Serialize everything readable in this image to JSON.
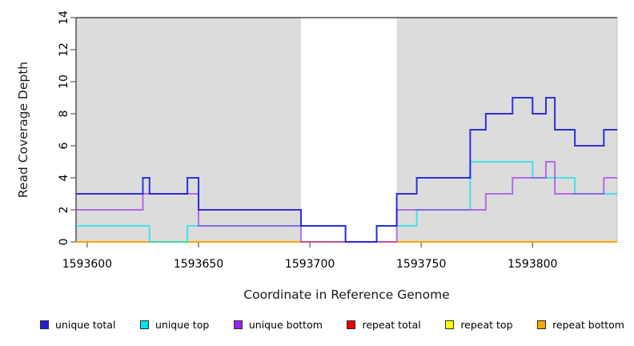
{
  "chart_data": {
    "type": "line",
    "subtype": "step-coverage",
    "title": "",
    "xlabel": "Coordinate in Reference Genome",
    "ylabel": "Read Coverage Depth",
    "xlim": [
      1593595,
      1593838
    ],
    "ylim": [
      0,
      14
    ],
    "x_ticks": [
      1593600,
      1593650,
      1593700,
      1593750,
      1593800
    ],
    "y_ticks": [
      0,
      2,
      4,
      6,
      8,
      10,
      12,
      14
    ],
    "grid": "off",
    "legend_position": "bottom",
    "shade_color": "#dcdcdc",
    "shaded_regions": [
      [
        1593595,
        1593696
      ],
      [
        1593739,
        1593838
      ]
    ],
    "unshaded_gap": [
      1593696,
      1593739
    ],
    "series": [
      {
        "name": "unique total",
        "color": "#1f1fdd",
        "steps": [
          [
            1593595,
            3
          ],
          [
            1593625,
            4
          ],
          [
            1593628,
            3
          ],
          [
            1593645,
            4
          ],
          [
            1593650,
            2
          ],
          [
            1593696,
            1
          ],
          [
            1593716,
            0
          ],
          [
            1593730,
            1
          ],
          [
            1593739,
            3
          ],
          [
            1593748,
            4
          ],
          [
            1593772,
            7
          ],
          [
            1593779,
            8
          ],
          [
            1593791,
            9
          ],
          [
            1593800,
            8
          ],
          [
            1593806,
            9
          ],
          [
            1593810,
            7
          ],
          [
            1593819,
            6
          ],
          [
            1593832,
            7
          ]
        ]
      },
      {
        "name": "unique top",
        "color": "#00e5ee",
        "steps": [
          [
            1593595,
            1
          ],
          [
            1593628,
            0
          ],
          [
            1593645,
            1
          ],
          [
            1593716,
            0
          ],
          [
            1593730,
            1
          ],
          [
            1593748,
            2
          ],
          [
            1593772,
            5
          ],
          [
            1593800,
            4
          ],
          [
            1593819,
            3
          ]
        ]
      },
      {
        "name": "unique bottom",
        "color": "#a020f0",
        "steps": [
          [
            1593595,
            2
          ],
          [
            1593625,
            3
          ],
          [
            1593650,
            1
          ],
          [
            1593696,
            0
          ],
          [
            1593739,
            2
          ],
          [
            1593779,
            3
          ],
          [
            1593791,
            4
          ],
          [
            1593806,
            5
          ],
          [
            1593810,
            3
          ],
          [
            1593832,
            4
          ]
        ]
      },
      {
        "name": "repeat total",
        "color": "#ee0000",
        "steps": [
          [
            1593595,
            0
          ]
        ]
      },
      {
        "name": "repeat top",
        "color": "#ffff00",
        "steps": [
          [
            1593595,
            0
          ]
        ]
      },
      {
        "name": "repeat bottom",
        "color": "#ffa500",
        "steps": [
          [
            1593595,
            0
          ]
        ]
      }
    ]
  }
}
